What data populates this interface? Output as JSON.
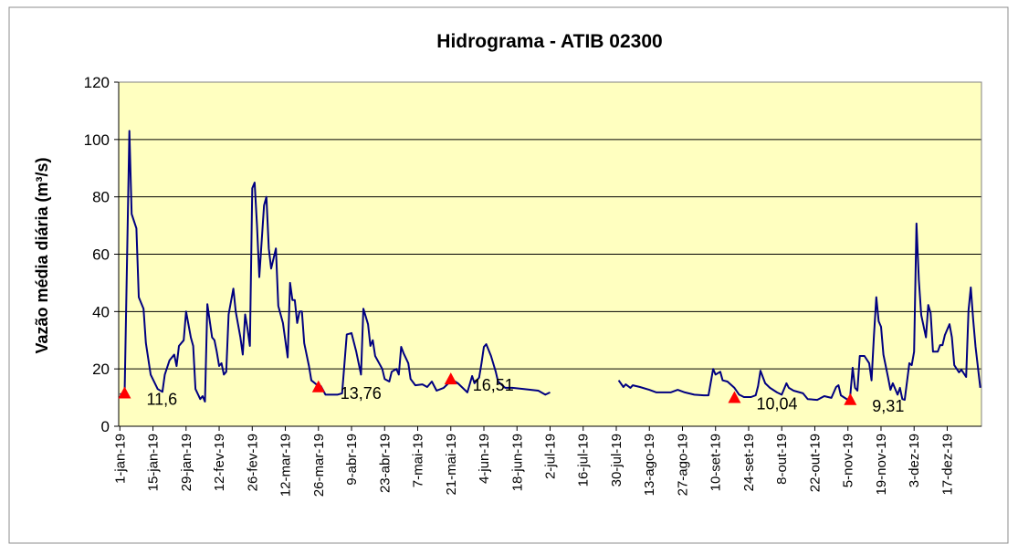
{
  "chart_data": {
    "type": "line",
    "title": "Hidrograma - ATIB 02300",
    "y_label": "Vazão média diária (m³/s)",
    "plot_background": "#ffffc0",
    "grid": true,
    "xlim": [
      "2019-01-01",
      "2019-12-31"
    ],
    "xticks": [
      {
        "value": "2019-01-01",
        "label": "1-jan-19"
      },
      {
        "value": "2019-01-15",
        "label": "15-jan-19"
      },
      {
        "value": "2019-01-29",
        "label": "29-jan-19"
      },
      {
        "value": "2019-02-12",
        "label": "12-fev-19"
      },
      {
        "value": "2019-02-26",
        "label": "26-fev-19"
      },
      {
        "value": "2019-03-12",
        "label": "12-mar-19"
      },
      {
        "value": "2019-03-26",
        "label": "26-mar-19"
      },
      {
        "value": "2019-04-09",
        "label": "9-abr-19"
      },
      {
        "value": "2019-04-23",
        "label": "23-abr-19"
      },
      {
        "value": "2019-05-07",
        "label": "7-mai-19"
      },
      {
        "value": "2019-05-21",
        "label": "21-mai-19"
      },
      {
        "value": "2019-06-04",
        "label": "4-jun-19"
      },
      {
        "value": "2019-06-18",
        "label": "18-jun-19"
      },
      {
        "value": "2019-07-02",
        "label": "2-jul-19"
      },
      {
        "value": "2019-07-16",
        "label": "16-jul-19"
      },
      {
        "value": "2019-07-30",
        "label": "30-jul-19"
      },
      {
        "value": "2019-08-13",
        "label": "13-ago-19"
      },
      {
        "value": "2019-08-27",
        "label": "27-ago-19"
      },
      {
        "value": "2019-09-10",
        "label": "10-set-19"
      },
      {
        "value": "2019-09-24",
        "label": "24-set-19"
      },
      {
        "value": "2019-10-08",
        "label": "8-out-19"
      },
      {
        "value": "2019-10-22",
        "label": "22-out-19"
      },
      {
        "value": "2019-11-05",
        "label": "5-nov-19"
      },
      {
        "value": "2019-11-19",
        "label": "19-nov-19"
      },
      {
        "value": "2019-12-03",
        "label": "3-dez-19"
      },
      {
        "value": "2019-12-17",
        "label": "17-dez-19"
      }
    ],
    "ylim": [
      0,
      120
    ],
    "yticks": [
      0,
      20,
      40,
      60,
      80,
      100,
      120
    ],
    "series": [
      {
        "color": "#000080",
        "x": [
          "2019-01-01",
          "2019-01-03",
          "2019-01-05",
          "2019-01-06",
          "2019-01-08",
          "2019-01-09",
          "2019-01-11",
          "2019-01-12",
          "2019-01-14",
          "2019-01-17",
          "2019-01-19",
          "2019-01-20",
          "2019-01-22",
          "2019-01-24",
          "2019-01-25",
          "2019-01-26",
          "2019-01-28",
          "2019-01-29",
          "2019-01-31",
          "2019-02-01",
          "2019-02-02",
          "2019-02-04",
          "2019-02-05",
          "2019-02-06",
          "2019-02-07",
          "2019-02-09",
          "2019-02-10",
          "2019-02-11",
          "2019-02-12",
          "2019-02-13",
          "2019-02-14",
          "2019-02-15",
          "2019-02-16",
          "2019-02-18",
          "2019-02-19",
          "2019-02-21",
          "2019-02-22",
          "2019-02-23",
          "2019-02-24",
          "2019-02-25",
          "2019-02-26",
          "2019-02-27",
          "2019-02-28",
          "2019-03-01",
          "2019-03-03",
          "2019-03-04",
          "2019-03-05",
          "2019-03-06",
          "2019-03-08",
          "2019-03-09",
          "2019-03-11",
          "2019-03-12",
          "2019-03-13",
          "2019-03-14",
          "2019-03-15",
          "2019-03-16",
          "2019-03-17",
          "2019-03-18",
          "2019-03-19",
          "2019-03-20",
          "2019-03-22",
          "2019-03-23",
          "2019-03-26",
          "2019-03-27",
          "2019-03-29",
          "2019-04-03",
          "2019-04-05",
          "2019-04-07",
          "2019-04-09",
          "2019-04-11",
          "2019-04-13",
          "2019-04-14",
          "2019-04-16",
          "2019-04-17",
          "2019-04-18",
          "2019-04-19",
          "2019-04-22",
          "2019-04-23",
          "2019-04-25",
          "2019-04-26",
          "2019-04-28",
          "2019-04-29",
          "2019-04-30",
          "2019-05-01",
          "2019-05-03",
          "2019-05-04",
          "2019-05-06",
          "2019-05-09",
          "2019-05-11",
          "2019-05-13",
          "2019-05-15",
          "2019-05-18",
          "2019-05-20",
          "2019-05-21",
          "2019-05-24",
          "2019-05-26",
          "2019-05-28",
          "2019-05-30",
          "2019-05-31",
          "2019-06-02",
          "2019-06-03",
          "2019-06-04",
          "2019-06-05",
          "2019-06-07",
          "2019-06-09",
          "2019-06-10",
          "2019-06-13",
          "2019-06-16",
          "2019-06-21",
          "2019-06-27",
          "2019-06-30",
          "2019-07-02",
          "2019-07-16",
          "2019-07-31",
          "2019-08-02",
          "2019-08-03",
          "2019-08-05",
          "2019-08-06",
          "2019-08-09",
          "2019-08-13",
          "2019-08-16",
          "2019-08-22",
          "2019-08-25",
          "2019-08-28",
          "2019-09-01",
          "2019-09-05",
          "2019-09-07",
          "2019-09-09",
          "2019-09-10",
          "2019-09-12",
          "2019-09-13",
          "2019-09-15",
          "2019-09-18",
          "2019-09-20",
          "2019-09-22",
          "2019-09-25",
          "2019-09-27",
          "2019-09-28",
          "2019-09-29",
          "2019-10-01",
          "2019-10-03",
          "2019-10-06",
          "2019-10-08",
          "2019-10-10",
          "2019-10-11",
          "2019-10-13",
          "2019-10-17",
          "2019-10-19",
          "2019-10-23",
          "2019-10-26",
          "2019-10-29",
          "2019-10-31",
          "2019-11-01",
          "2019-11-02",
          "2019-11-05",
          "2019-11-06",
          "2019-11-07",
          "2019-11-08",
          "2019-11-09",
          "2019-11-10",
          "2019-11-12",
          "2019-11-14",
          "2019-11-15",
          "2019-11-16",
          "2019-11-17",
          "2019-11-18",
          "2019-11-19",
          "2019-11-20",
          "2019-11-22",
          "2019-11-23",
          "2019-11-24",
          "2019-11-26",
          "2019-11-27",
          "2019-11-28",
          "2019-11-29",
          "2019-12-01",
          "2019-12-02",
          "2019-12-03",
          "2019-12-04",
          "2019-12-05",
          "2019-12-06",
          "2019-12-08",
          "2019-12-09",
          "2019-12-10",
          "2019-12-11",
          "2019-12-13",
          "2019-12-14",
          "2019-12-15",
          "2019-12-16",
          "2019-12-18",
          "2019-12-19",
          "2019-12-20",
          "2019-12-22",
          "2019-12-23",
          "2019-12-25",
          "2019-12-26",
          "2019-12-27",
          "2019-12-28",
          "2019-12-29",
          "2019-12-31"
        ],
        "values": [
          11.1,
          11.6,
          103,
          74,
          69,
          45,
          41,
          29,
          18,
          13,
          12,
          18,
          23,
          25,
          21,
          28,
          30,
          40,
          31,
          28,
          13,
          9.5,
          10.5,
          8.6,
          42.6,
          31,
          30,
          26,
          21,
          22,
          18,
          19,
          39,
          48,
          40,
          31,
          25,
          39,
          34,
          28,
          83,
          85,
          70,
          52,
          77,
          80,
          62,
          55,
          62,
          42,
          36,
          30,
          24,
          50,
          44,
          44,
          36,
          40,
          40,
          29,
          21,
          16,
          14,
          14,
          11,
          11,
          11.5,
          32,
          32.5,
          26,
          18,
          41,
          35.6,
          28,
          30,
          24.5,
          20,
          16.5,
          15.6,
          19,
          20,
          18,
          27.7,
          25.5,
          22,
          16.5,
          14.3,
          14.6,
          13.7,
          15.6,
          12.4,
          13.4,
          15,
          16.5,
          15,
          13.4,
          11.8,
          17.5,
          15,
          17,
          22,
          27.7,
          28.6,
          24.5,
          19,
          15.6,
          13.4,
          13.4,
          13,
          12.4,
          11,
          11.8,
          null,
          16,
          13.7,
          14.6,
          13.4,
          14.3,
          13.7,
          12.7,
          11.8,
          11.8,
          12.7,
          11.8,
          11,
          10.8,
          10.8,
          20,
          18,
          19,
          16,
          15.6,
          13.4,
          11,
          10.2,
          10.2,
          10.8,
          14,
          19.4,
          15,
          13.4,
          11.8,
          11,
          15,
          13.4,
          12.4,
          11.5,
          9.5,
          9.2,
          10.5,
          9.9,
          13.7,
          14.3,
          10.8,
          9.2,
          10.8,
          20.4,
          13.4,
          12.4,
          24.5,
          24.5,
          22,
          16,
          31.5,
          45,
          36.6,
          34.7,
          25,
          17,
          12.7,
          15,
          11,
          13.4,
          9.5,
          9.2,
          22,
          21.3,
          26,
          70.7,
          51,
          38.8,
          31,
          42.3,
          39.5,
          26,
          26,
          28.3,
          28.3,
          31.8,
          35.6,
          31,
          21.3,
          18.8,
          19.7,
          17.2,
          40.4,
          48.4,
          37.2,
          27.7,
          13.4
        ]
      },
      {
        "color": "#ff0000",
        "marker": "triangle",
        "x": [
          "2019-01-03",
          "2019-03-26",
          "2019-05-21",
          "2019-09-18",
          "2019-11-06"
        ],
        "values": [
          11.6,
          13.76,
          16.51,
          10.04,
          9.31
        ],
        "value_labels": [
          "11,6",
          "13,76",
          "16,51",
          "10,04",
          "9,31"
        ]
      }
    ]
  }
}
